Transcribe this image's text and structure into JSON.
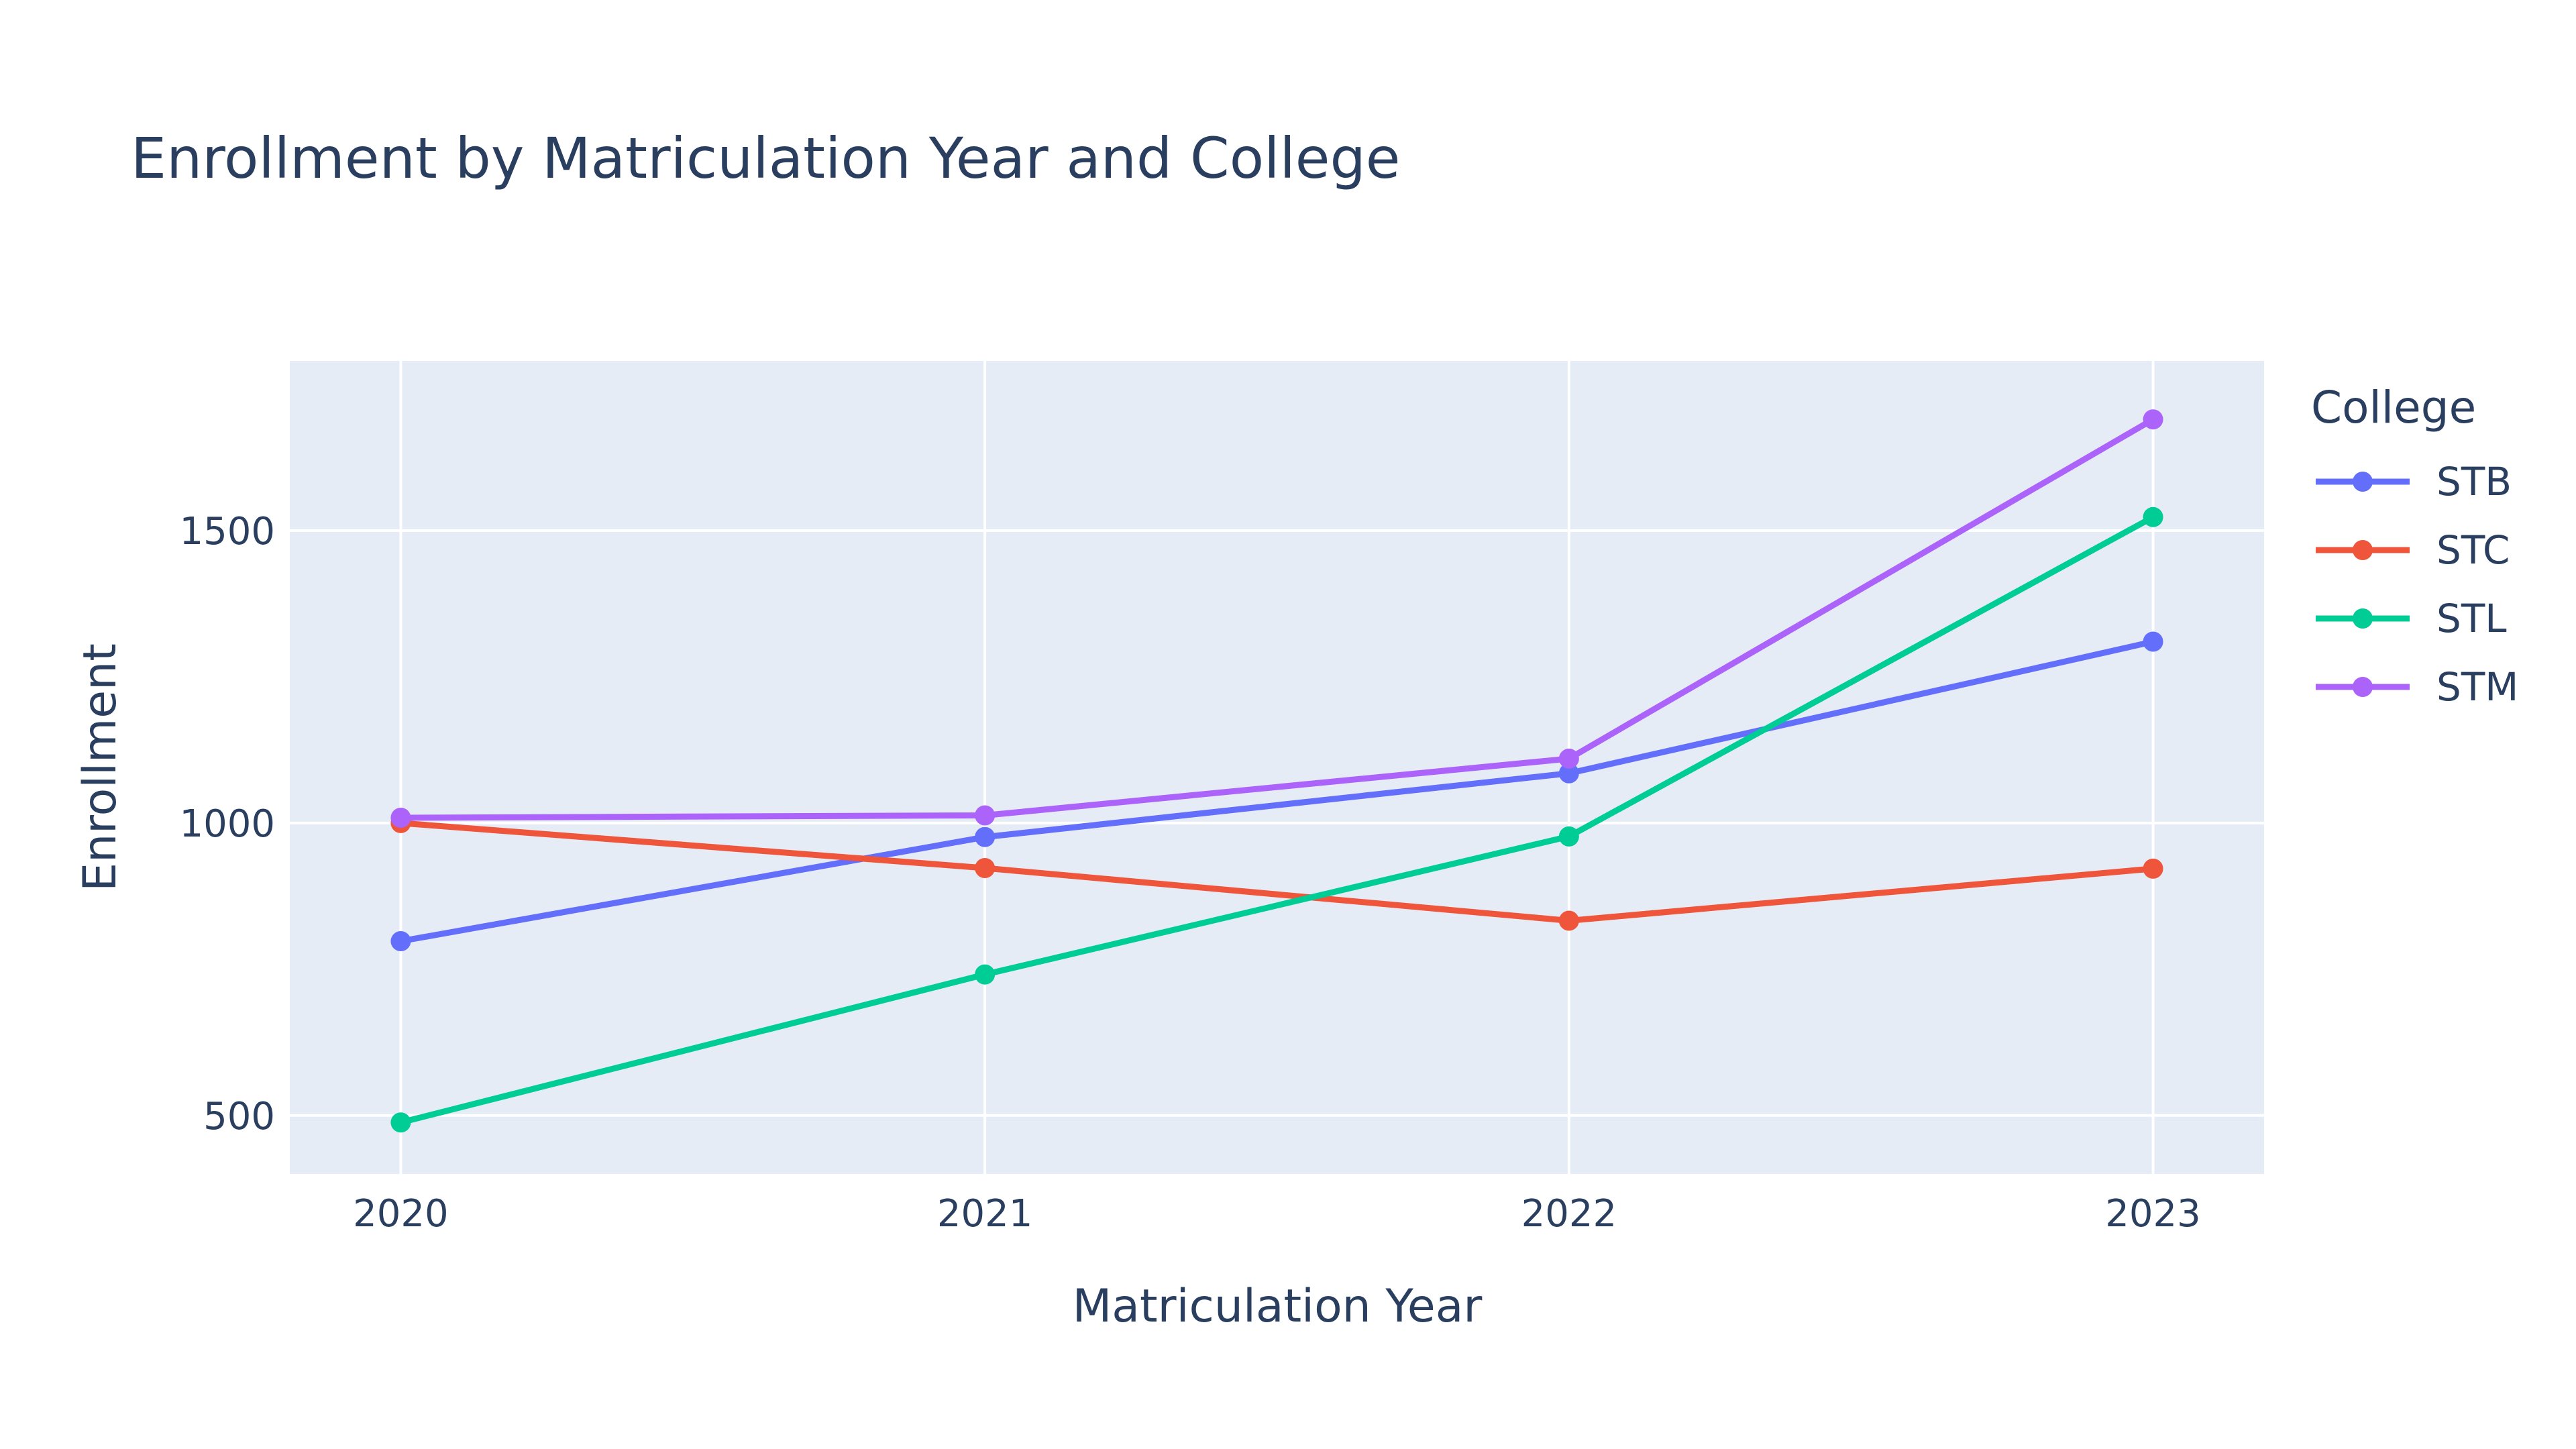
{
  "chart_data": {
    "type": "line",
    "title": "Enrollment by Matriculation Year and College",
    "xlabel": "Matriculation Year",
    "ylabel": "Enrollment",
    "x": [
      "2020",
      "2021",
      "2022",
      "2023"
    ],
    "x_range": [
      2019.81,
      2023.19
    ],
    "ylim": [
      400,
      1790
    ],
    "y_ticks": [
      500,
      1000,
      1500
    ],
    "grid": true,
    "legend": {
      "title": "College",
      "position": "right"
    },
    "series": [
      {
        "name": "STB",
        "color": "#636efa",
        "values": [
          798,
          976,
          1085,
          1310
        ]
      },
      {
        "name": "STC",
        "color": "#ef553b",
        "values": [
          1000,
          923,
          833,
          922
        ]
      },
      {
        "name": "STL",
        "color": "#00cc96",
        "values": [
          488,
          741,
          977,
          1523
        ]
      },
      {
        "name": "STM",
        "color": "#ab63fa",
        "values": [
          1009,
          1013,
          1110,
          1690
        ]
      }
    ]
  }
}
